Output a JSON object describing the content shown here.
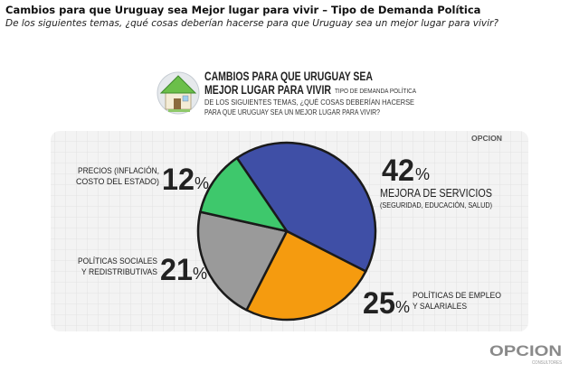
{
  "page": {
    "title": "Cambios para que Uruguay sea Mejor lugar para vivir – Tipo de Demanda Política",
    "subtitle": "De los siguientes temas, ¿qué cosas deberían hacerse para que Uruguay sea un mejor lugar para vivir?"
  },
  "banner": {
    "title_line1": "CAMBIOS PARA QUE URUGUAY SEA",
    "title_line2": "MEJOR LUGAR PARA VIVIR",
    "tag": "TIPO DE DEMANDA POLÍTICA",
    "question_line1": "DE LOS SIGUIENTES TEMAS, ¿QUÉ COSAS DEBERÍAN HACERSE",
    "question_line2": "PARA QUE URUGUAY SEA UN MEJOR LUGAR PARA VIVIR?"
  },
  "brand": {
    "logo_small": "OPCION",
    "logo_large": "OPCION",
    "logo_sub": "CONSULTORES"
  },
  "colors": {
    "mejora_servicios": "#3f4fa6",
    "politicas_empleo": "#f59b0f",
    "politicas_sociales": "#9a9a9a",
    "precios": "#3ec86c",
    "grid_bg": "#f3f3f3",
    "grid_line": "#dedede",
    "text_dark": "#222222"
  },
  "chart_data": {
    "type": "pie",
    "categories": [
      "Mejora de servicios",
      "Políticas de empleo y salariales",
      "Políticas sociales y redistributivas",
      "Precios (inflación, costo del estado)"
    ],
    "values": [
      42,
      25,
      21,
      12
    ],
    "labels": [
      {
        "percent": "42",
        "line1": "MEJORA DE SERVICIOS",
        "line2": "(SEGURIDAD, EDUCACIÓN, SALUD)"
      },
      {
        "percent": "25",
        "line1": "POLÍTICAS DE EMPLEO",
        "line2": "Y SALARIALES"
      },
      {
        "percent": "21",
        "line1": "POLÍTICAS SOCIALES",
        "line2": "Y REDISTRIBUTIVAS"
      },
      {
        "percent": "12",
        "line1": "PRECIOS (INFLACIÓN,",
        "line2": "COSTO DEL ESTADO)"
      }
    ],
    "percent_sign": "%"
  }
}
